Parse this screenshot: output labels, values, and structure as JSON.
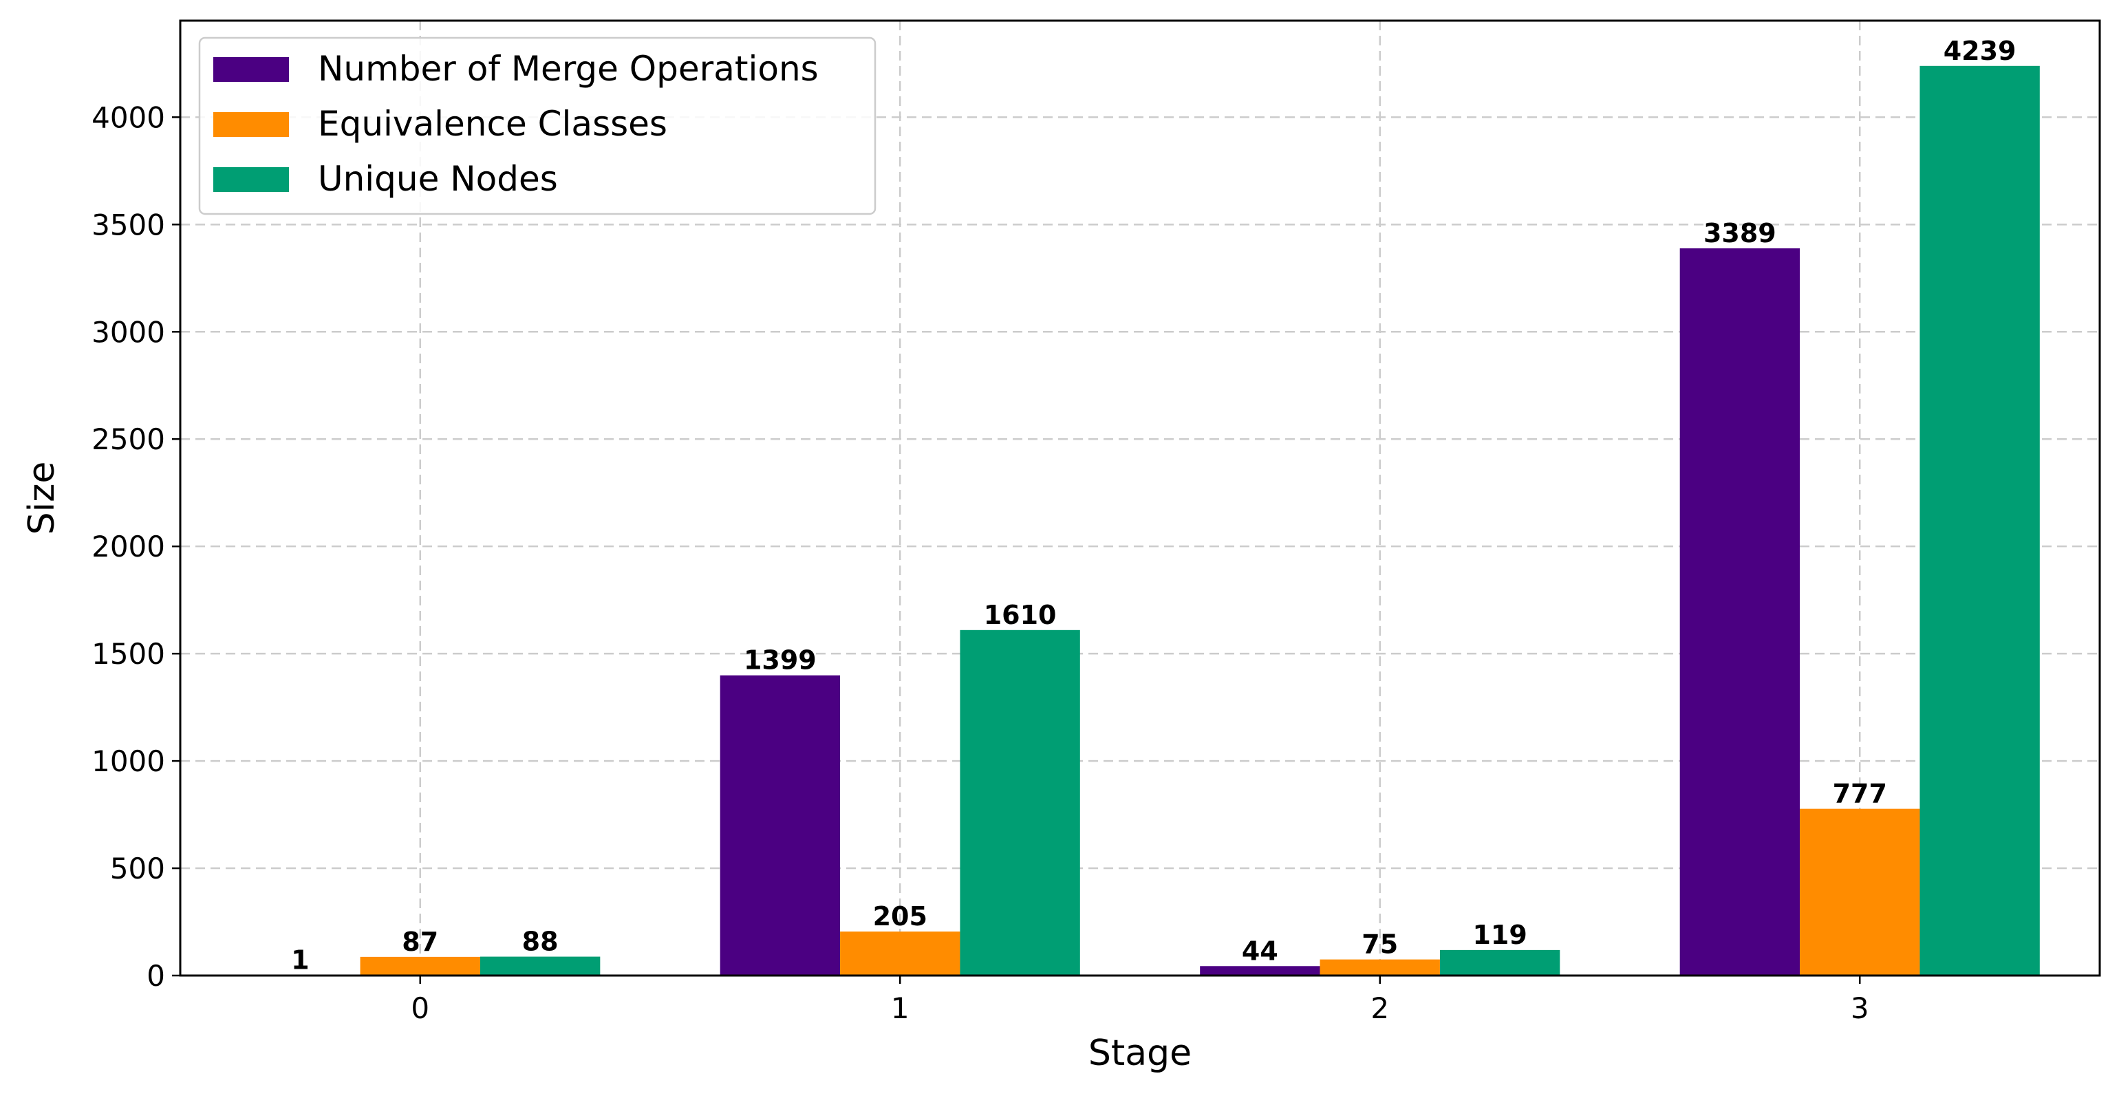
{
  "chart_data": {
    "type": "bar",
    "xlabel": "Stage",
    "ylabel": "Size",
    "categories": [
      "0",
      "1",
      "2",
      "3"
    ],
    "ylim": [
      0,
      4450
    ],
    "yticks": [
      0,
      500,
      1000,
      1500,
      2000,
      2500,
      3000,
      3500,
      4000
    ],
    "grid": true,
    "legend_position": "top-left",
    "series": [
      {
        "name": "Number of Merge Operations",
        "color": "#4b0082",
        "values": [
          1,
          1399,
          44,
          3389
        ]
      },
      {
        "name": "Equivalence Classes",
        "color": "#ff8c00",
        "values": [
          87,
          205,
          75,
          777
        ]
      },
      {
        "name": "Unique Nodes",
        "color": "#009e73",
        "values": [
          88,
          1610,
          119,
          4239
        ]
      }
    ]
  }
}
